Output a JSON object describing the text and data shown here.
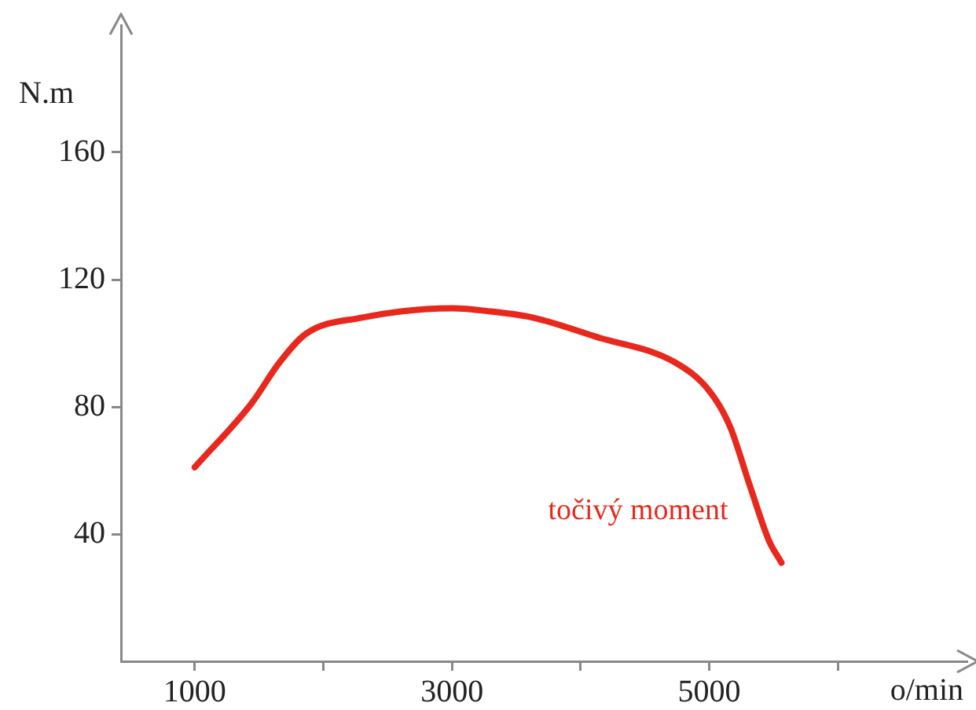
{
  "chart_data": {
    "type": "line",
    "xlabel": "o/min",
    "ylabel": "N.m",
    "xlim": [
      427,
      7000
    ],
    "ylim": [
      0,
      200
    ],
    "xticks": [
      1000,
      {
        "value": 2000,
        "label": null
      },
      3000,
      {
        "value": 4000,
        "label": null
      },
      5000,
      {
        "value": 6000,
        "label": null
      }
    ],
    "yticks": [
      40,
      80,
      120,
      160
    ],
    "grid": false,
    "legend": false,
    "marker": "none",
    "line_style": "solid",
    "series": [
      {
        "name": "točivý moment",
        "color": "#e8281c",
        "x": [
          1000,
          1440,
          1660,
          1866,
          2293,
          3000,
          3300,
          3634,
          4122,
          4732,
          5000,
          5159,
          5317,
          5463,
          5561
        ],
        "values": [
          61,
          81,
          94,
          103,
          108,
          111,
          110,
          108,
          102,
          94,
          85,
          74,
          55,
          38,
          31
        ]
      }
    ]
  }
}
